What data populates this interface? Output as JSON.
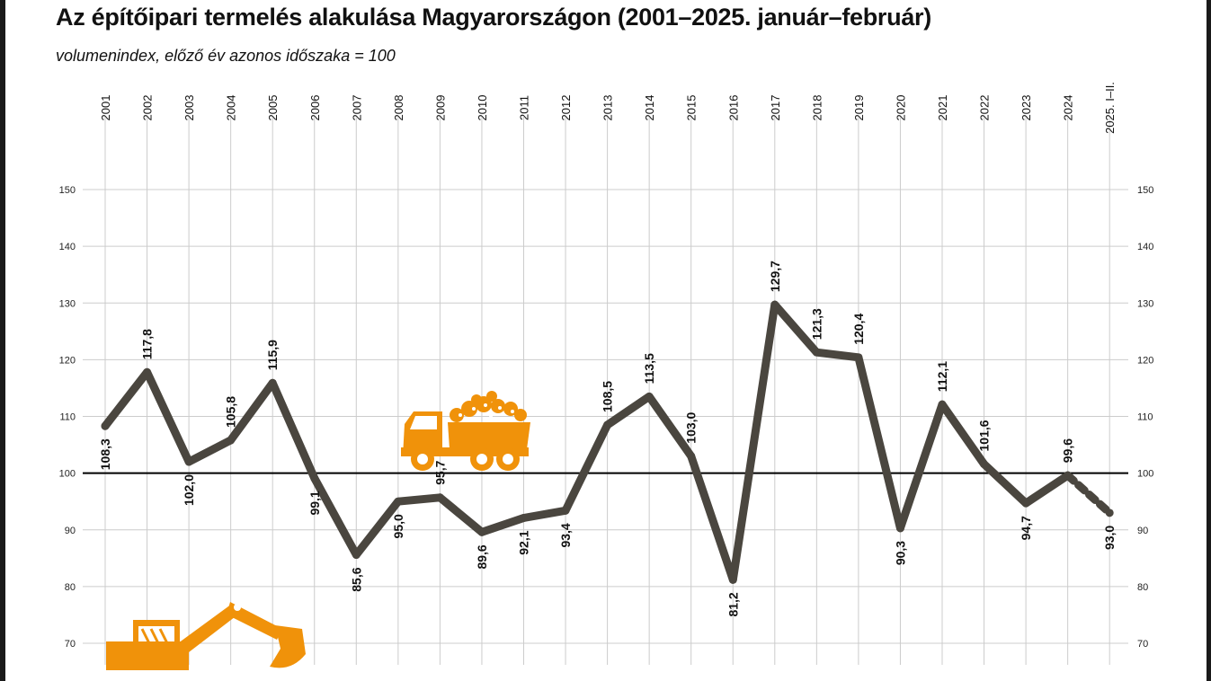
{
  "title": "Az építőipari termelés alakulása Magyarországon (2001–2025. január–február)",
  "subtitle": "volumenindex, előző év azonos időszaka = 100",
  "chart_data": {
    "type": "line",
    "title": "Az építőipari termelés alakulása Magyarországon (2001–2025. január–február)",
    "subtitle": "volumenindex, előző év azonos időszaka = 100",
    "categories": [
      "2001",
      "2002",
      "2003",
      "2004",
      "2005",
      "2006",
      "2007",
      "2008",
      "2009",
      "2010",
      "2011",
      "2012",
      "2013",
      "2014",
      "2015",
      "2016",
      "2017",
      "2018",
      "2019",
      "2020",
      "2021",
      "2022",
      "2023",
      "2024",
      "2025. I–II."
    ],
    "series": [
      {
        "values": [
          108.3,
          117.8,
          102.0,
          105.8,
          115.9,
          99.1,
          85.6,
          95.0,
          95.7,
          89.6,
          92.1,
          93.4,
          108.5,
          113.5,
          103.0,
          81.2,
          129.7,
          121.3,
          120.4,
          90.3,
          112.1,
          101.6,
          94.7,
          99.6,
          93.0
        ],
        "labels": [
          "108,3",
          "117,8",
          "102,0",
          "105,8",
          "115,9",
          "99,1",
          "85,6",
          "95,0",
          "95,7",
          "89,6",
          "92,1",
          "93,4",
          "108,5",
          "113,5",
          "103,0",
          "81,2",
          "129,7",
          "121,3",
          "120,4",
          "90,3",
          "112,1",
          "101,6",
          "94,7",
          "99,6",
          "93,0"
        ],
        "dashed_last_segment": true
      }
    ],
    "y_ticks": [
      "70",
      "80",
      "90",
      "100",
      "110",
      "120",
      "130",
      "140",
      "150"
    ],
    "ylim": [
      70,
      150
    ],
    "reference_line": 100,
    "grid": true,
    "colors": {
      "line": "#4a463f",
      "accent": "#f0920a",
      "grid": "#cccccc",
      "text": "#111111"
    }
  }
}
